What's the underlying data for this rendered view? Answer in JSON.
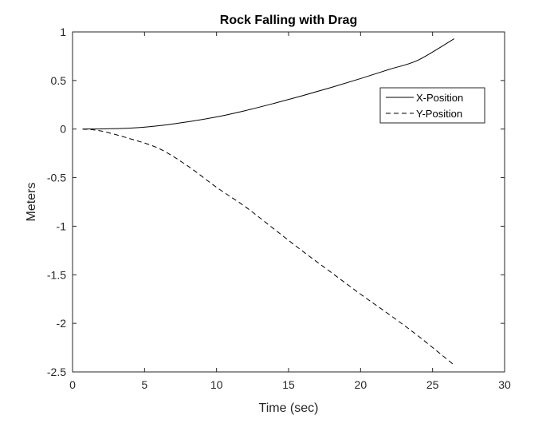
{
  "chart_data": {
    "type": "line",
    "title": "Rock Falling with Drag",
    "xlabel": "Time (sec)",
    "ylabel": "Meters",
    "xlim": [
      0,
      30
    ],
    "ylim": [
      -2.5,
      1
    ],
    "xticks": [
      0,
      5,
      10,
      15,
      20,
      25,
      30
    ],
    "yticks": [
      -2.5,
      -2,
      -1.5,
      -1,
      -0.5,
      0,
      0.5,
      1
    ],
    "xtick_labels": [
      "0",
      "5",
      "10",
      "15",
      "20",
      "25",
      "30"
    ],
    "ytick_labels": [
      "-2.5",
      "-2",
      "-1.5",
      "-1",
      "-0.5",
      "0",
      "0.5",
      "1"
    ],
    "grid": false,
    "legend_position": "top-right",
    "series": [
      {
        "name": "X-Position",
        "style": "solid",
        "color": "#000000",
        "x": [
          0.7,
          2,
          4,
          6,
          8,
          10,
          12,
          14,
          16,
          18,
          20,
          22,
          24,
          26.5
        ],
        "y": [
          0,
          0.002,
          0.01,
          0.035,
          0.075,
          0.125,
          0.19,
          0.265,
          0.345,
          0.43,
          0.52,
          0.615,
          0.71,
          0.93
        ]
      },
      {
        "name": "Y-Position",
        "style": "dashed",
        "color": "#000000",
        "x": [
          0.7,
          2,
          4,
          6,
          8,
          10,
          12,
          14,
          16,
          18,
          20,
          22,
          24,
          26.5
        ],
        "y": [
          0,
          -0.02,
          -0.1,
          -0.2,
          -0.38,
          -0.6,
          -0.8,
          -1.03,
          -1.26,
          -1.48,
          -1.7,
          -1.91,
          -2.13,
          -2.43
        ]
      }
    ]
  }
}
